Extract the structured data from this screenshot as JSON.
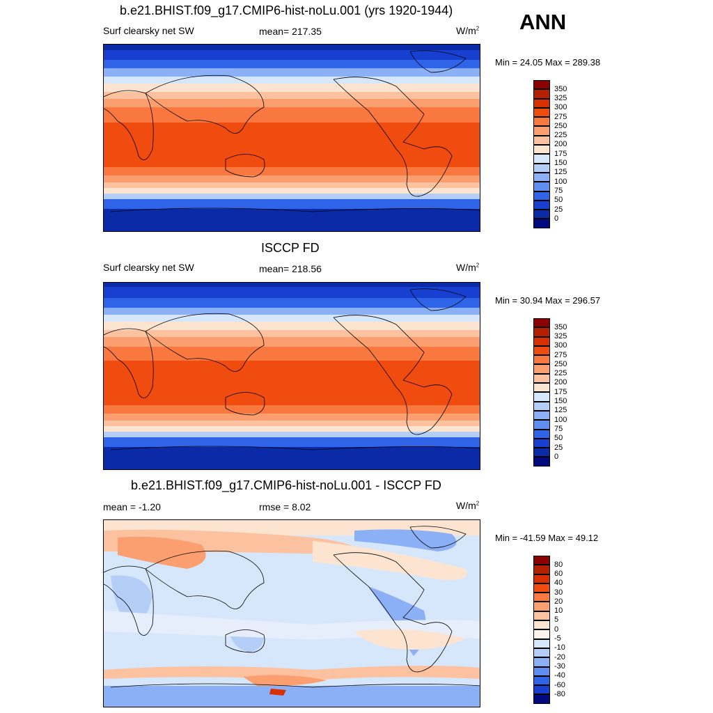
{
  "season": "ANN",
  "units_main": "W/m",
  "units_sup": "2",
  "panels": [
    {
      "title": "b.e21.BHIST.f09_g17.CMIP6-hist-noLu.001 (yrs 1920-1944)",
      "left": "Surf clearsky net SW",
      "center": "mean= 217.35",
      "minmax": "Min =  24.05 Max = 289.38"
    },
    {
      "title": "ISCCP FD",
      "left": "Surf clearsky net SW",
      "center": "mean= 218.56",
      "minmax": "Min =  30.94 Max = 296.57"
    },
    {
      "title": "b.e21.BHIST.f09_g17.CMIP6-hist-noLu.001 - ISCCP FD",
      "left": "mean =  -1.20",
      "center": "rmse =   8.02",
      "minmax": "Min = -41.59 Max =  49.12"
    }
  ],
  "colorbars": {
    "absolute": {
      "labels": [
        "350",
        "325",
        "300",
        "275",
        "250",
        "225",
        "200",
        "175",
        "150",
        "125",
        "100",
        "75",
        "50",
        "25",
        "0"
      ],
      "colors": [
        "#8b0000",
        "#b22000",
        "#d83000",
        "#f04c10",
        "#f87840",
        "#fb9e70",
        "#fcc2a0",
        "#fde4d0",
        "#d7e7fb",
        "#b4cef8",
        "#8cb0f5",
        "#5f8ef0",
        "#2f64e8",
        "#1840d0",
        "#0a2aa8",
        "#000a80"
      ]
    },
    "difference": {
      "labels": [
        "80",
        "60",
        "40",
        "30",
        "20",
        "10",
        "5",
        "0",
        "-5",
        "-10",
        "-20",
        "-30",
        "-40",
        "-60",
        "-80"
      ],
      "colors": [
        "#8b0000",
        "#b22000",
        "#d83000",
        "#f04c10",
        "#f87840",
        "#fb9e70",
        "#fcc2a0",
        "#fde4d0",
        "#fff4ec",
        "#d7e7fb",
        "#b4cef8",
        "#8cb0f5",
        "#5f8ef0",
        "#2f64e8",
        "#1840d0",
        "#000a80"
      ]
    }
  }
}
